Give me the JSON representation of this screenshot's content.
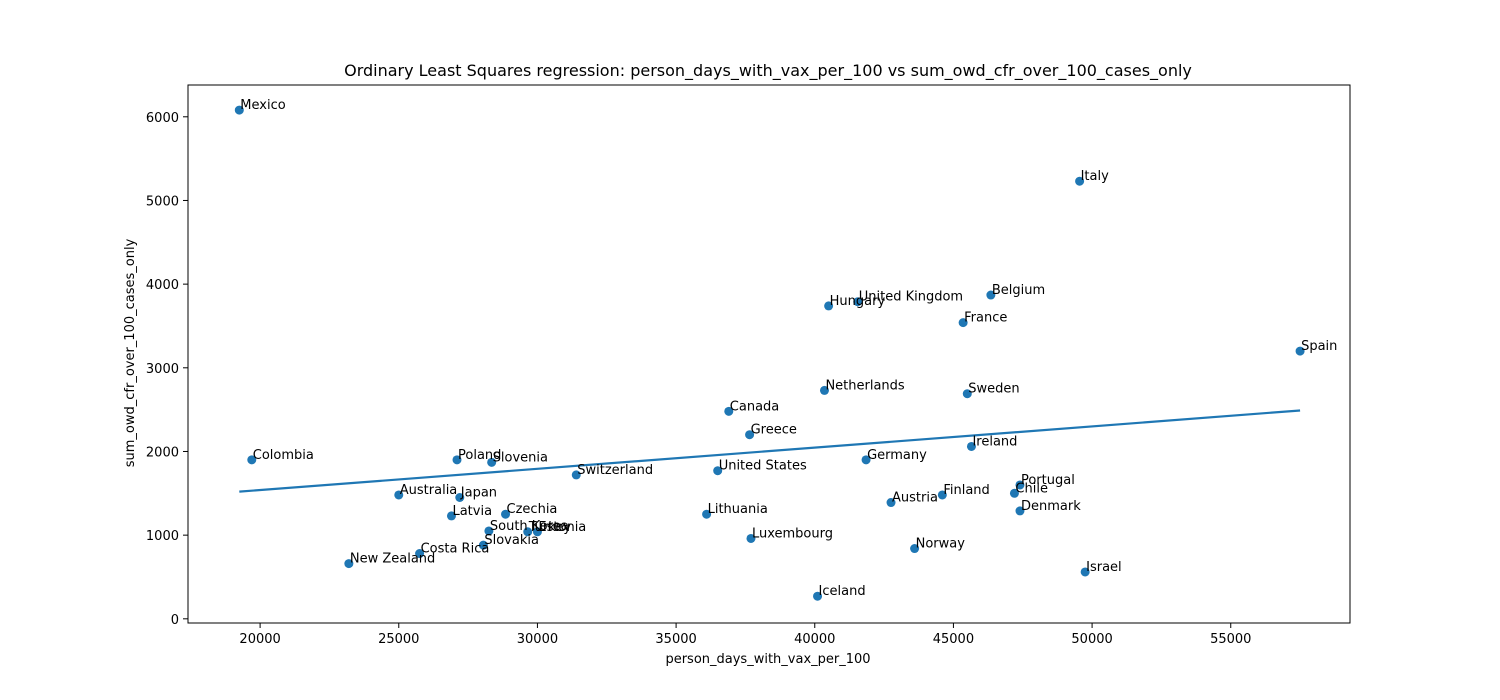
{
  "chart_data": {
    "type": "scatter",
    "title": "Ordinary Least Squares regression: person_days_with_vax_per_100 vs sum_owd_cfr_over_100_cases_only",
    "xlabel": "person_days_with_vax_per_100",
    "ylabel": "sum_owd_cfr_over_100_cases_only",
    "xlim": [
      17400,
      59300
    ],
    "ylim": [
      -50,
      6380
    ],
    "xticks": [
      20000,
      25000,
      30000,
      35000,
      40000,
      45000,
      50000,
      55000
    ],
    "yticks": [
      0,
      1000,
      2000,
      3000,
      4000,
      5000,
      6000
    ],
    "grid": false,
    "point_color": "#1f77b4",
    "line_color": "#1f77b4",
    "points": [
      {
        "label": "Mexico",
        "x": 19250,
        "y": 6080
      },
      {
        "label": "Italy",
        "x": 49550,
        "y": 5230
      },
      {
        "label": "Belgium",
        "x": 46350,
        "y": 3870
      },
      {
        "label": "United Kingdom",
        "x": 41550,
        "y": 3790
      },
      {
        "label": "Hungary",
        "x": 40500,
        "y": 3740
      },
      {
        "label": "France",
        "x": 45350,
        "y": 3540
      },
      {
        "label": "Spain",
        "x": 57500,
        "y": 3200
      },
      {
        "label": "Netherlands",
        "x": 40350,
        "y": 2730
      },
      {
        "label": "Sweden",
        "x": 45500,
        "y": 2690
      },
      {
        "label": "Canada",
        "x": 36900,
        "y": 2480
      },
      {
        "label": "Greece",
        "x": 37650,
        "y": 2200
      },
      {
        "label": "Ireland",
        "x": 45650,
        "y": 2060
      },
      {
        "label": "Colombia",
        "x": 19700,
        "y": 1900
      },
      {
        "label": "Poland",
        "x": 27100,
        "y": 1900
      },
      {
        "label": "Slovenia",
        "x": 28350,
        "y": 1870
      },
      {
        "label": "Germany",
        "x": 41850,
        "y": 1900
      },
      {
        "label": "United States",
        "x": 36500,
        "y": 1770
      },
      {
        "label": "Switzerland",
        "x": 31400,
        "y": 1720
      },
      {
        "label": "Portugal",
        "x": 47400,
        "y": 1600
      },
      {
        "label": "Chile",
        "x": 47200,
        "y": 1500
      },
      {
        "label": "Finland",
        "x": 44600,
        "y": 1480
      },
      {
        "label": "Australia",
        "x": 25000,
        "y": 1480
      },
      {
        "label": "Japan",
        "x": 27200,
        "y": 1450
      },
      {
        "label": "Austria",
        "x": 42750,
        "y": 1390
      },
      {
        "label": "Denmark",
        "x": 47400,
        "y": 1290
      },
      {
        "label": "Lithuania",
        "x": 36100,
        "y": 1250
      },
      {
        "label": "Czechia",
        "x": 28850,
        "y": 1250
      },
      {
        "label": "Latvia",
        "x": 26900,
        "y": 1230
      },
      {
        "label": "South Korea",
        "x": 28250,
        "y": 1050
      },
      {
        "label": "Turkey",
        "x": 29650,
        "y": 1040
      },
      {
        "label": "Estonia",
        "x": 30000,
        "y": 1040
      },
      {
        "label": "Luxembourg",
        "x": 37700,
        "y": 960
      },
      {
        "label": "Slovakia",
        "x": 28050,
        "y": 880
      },
      {
        "label": "Norway",
        "x": 43600,
        "y": 840
      },
      {
        "label": "Costa Rica",
        "x": 25750,
        "y": 780
      },
      {
        "label": "New Zealand",
        "x": 23200,
        "y": 660
      },
      {
        "label": "Israel",
        "x": 49750,
        "y": 560
      },
      {
        "label": "Iceland",
        "x": 40100,
        "y": 270
      }
    ],
    "regression_line": {
      "x": [
        19250,
        57500
      ],
      "y": [
        1520,
        2490
      ]
    }
  }
}
